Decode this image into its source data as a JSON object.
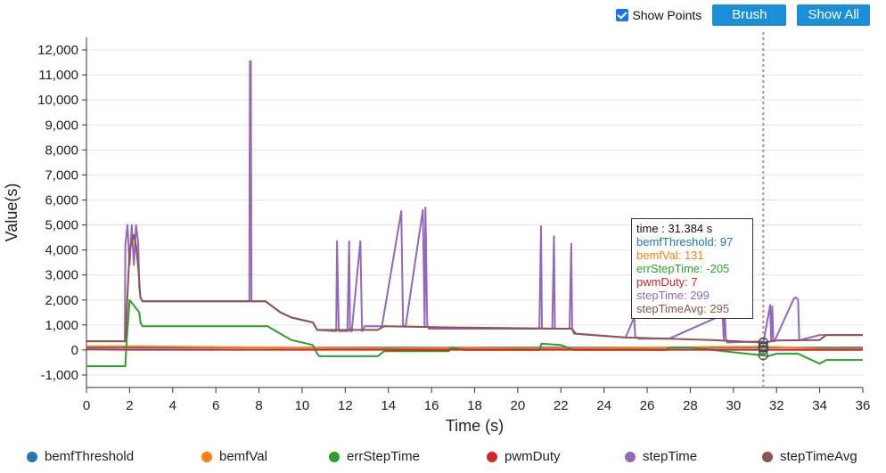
{
  "toolbar": {
    "show_points_label": "Show Points",
    "show_points_checked": true,
    "brush_label": "Brush",
    "show_all_label": "Show All"
  },
  "chart_data": {
    "type": "line",
    "xlabel": "Time (s)",
    "ylabel": "Value(s)",
    "xlim": [
      0,
      36
    ],
    "ylim": [
      -1500,
      12500
    ],
    "xticks": [
      0,
      2,
      4,
      6,
      8,
      10,
      12,
      14,
      16,
      18,
      20,
      22,
      24,
      26,
      28,
      30,
      32,
      34,
      36
    ],
    "yticks": [
      -1000,
      0,
      1000,
      2000,
      3000,
      4000,
      5000,
      6000,
      7000,
      8000,
      9000,
      10000,
      11000,
      12000
    ],
    "ytick_labels": [
      "-1,000",
      "0",
      "1,000",
      "2,000",
      "3,000",
      "4,000",
      "5,000",
      "6,000",
      "7,000",
      "8,000",
      "9,000",
      "10,000",
      "11,000",
      "12,000"
    ],
    "grid": true,
    "legend_position": "bottom",
    "cursor_x": 31.384,
    "series": [
      {
        "name": "bemfThreshold",
        "color": "#1f77b4",
        "x": [
          0,
          1.9,
          2.0,
          36
        ],
        "y": [
          100,
          100,
          97,
          97
        ]
      },
      {
        "name": "bemfVal",
        "color": "#ff7f0e",
        "x": [
          0,
          1.9,
          2.5,
          8,
          10.5,
          14,
          17,
          21,
          26,
          29,
          31.4,
          34,
          36
        ],
        "y": [
          150,
          150,
          150,
          100,
          80,
          60,
          80,
          60,
          80,
          120,
          131,
          50,
          40
        ]
      },
      {
        "name": "errStepTime",
        "color": "#2ca02c",
        "x": [
          0,
          1.8,
          1.85,
          2.0,
          2.45,
          2.5,
          2.6,
          8.4,
          9.5,
          10.5,
          10.7,
          10.8,
          13.5,
          13.8,
          14.0,
          16.8,
          16.9,
          17.5,
          21.0,
          21.1,
          22.0,
          22.6,
          26.9,
          27.0,
          28.0,
          31.2,
          31.6,
          31.8,
          32.0,
          33.0,
          34.0,
          34.3,
          36
        ],
        "y": [
          -650,
          -650,
          200,
          2000,
          1500,
          1100,
          950,
          950,
          400,
          200,
          -150,
          -250,
          -250,
          -50,
          -50,
          -50,
          100,
          0,
          0,
          250,
          200,
          0,
          0,
          100,
          100,
          -205,
          -250,
          -200,
          -150,
          -150,
          -550,
          -400,
          -400
        ]
      },
      {
        "name": "pwmDuty",
        "color": "#d62728",
        "x": [
          0,
          2,
          36
        ],
        "y": [
          20,
          10,
          7
        ]
      },
      {
        "name": "stepTime",
        "color": "#9467bd",
        "x": [
          0,
          1.78,
          1.8,
          1.9,
          2.0,
          2.1,
          2.2,
          2.3,
          2.4,
          2.45,
          2.5,
          2.6,
          7.55,
          7.58,
          7.62,
          7.65,
          8.3,
          9.0,
          9.5,
          10.5,
          10.7,
          11.5,
          11.58,
          11.62,
          11.7,
          12.1,
          12.18,
          12.22,
          12.3,
          12.7,
          12.78,
          12.82,
          12.9,
          13.5,
          13.7,
          14.6,
          14.68,
          14.72,
          14.8,
          15.6,
          15.68,
          15.72,
          15.8,
          15.83,
          15.87,
          15.95,
          17.0,
          21.0,
          21.08,
          21.12,
          21.2,
          21.6,
          21.68,
          21.72,
          21.8,
          22.4,
          22.48,
          22.52,
          22.6,
          25.0,
          25.4,
          25.45,
          25.55,
          25.6,
          27.0,
          29.5,
          29.55,
          29.6,
          29.65,
          29.7,
          31.4,
          31.7,
          31.75,
          31.8,
          31.85,
          31.9,
          32.8,
          32.9,
          33.0,
          33.05,
          33.1,
          34.0,
          34.3,
          36
        ],
        "y": [
          350,
          350,
          4200,
          5000,
          3400,
          5000,
          3400,
          5000,
          4300,
          2500,
          2100,
          1950,
          1950,
          11550,
          11550,
          1950,
          1950,
          1500,
          1300,
          1100,
          800,
          750,
          750,
          4350,
          750,
          750,
          4350,
          750,
          750,
          4350,
          750,
          800,
          950,
          950,
          950,
          5550,
          950,
          950,
          950,
          5600,
          950,
          5700,
          950,
          950,
          850,
          850,
          850,
          850,
          4950,
          850,
          850,
          850,
          4550,
          850,
          850,
          850,
          4250,
          850,
          650,
          500,
          1300,
          500,
          500,
          450,
          450,
          1400,
          450,
          1400,
          450,
          299,
          350,
          1800,
          350,
          1750,
          350,
          350,
          2050,
          2100,
          2000,
          400,
          400,
          600,
          600,
          600
        ]
      },
      {
        "name": "stepTimeAvg",
        "color": "#8c564b",
        "x": [
          0,
          1.8,
          2.0,
          2.2,
          2.3,
          2.4,
          2.5,
          2.6,
          8.3,
          9.0,
          9.5,
          10.5,
          10.7,
          13.5,
          13.8,
          17.0,
          22.5,
          22.7,
          25.0,
          27.0,
          29.0,
          31.4,
          32.0,
          34.0,
          34.3,
          36
        ],
        "y": [
          350,
          350,
          4000,
          4600,
          4200,
          3300,
          2100,
          1950,
          1950,
          1500,
          1300,
          1100,
          800,
          800,
          950,
          900,
          850,
          650,
          500,
          450,
          400,
          295,
          380,
          400,
          600,
          600
        ]
      }
    ]
  },
  "tooltip": {
    "time_label": "time : 31.384 s",
    "lines": [
      {
        "text": "bemfThreshold: 97",
        "color": "#1f77b4"
      },
      {
        "text": "bemfVal: 131",
        "color": "#ff7f0e"
      },
      {
        "text": "errStepTime: -205",
        "color": "#2ca02c"
      },
      {
        "text": "pwmDuty: 7",
        "color": "#d62728"
      },
      {
        "text": "stepTime: 299",
        "color": "#9467bd"
      },
      {
        "text": "stepTimeAvg: 295",
        "color": "#8c564b"
      }
    ]
  }
}
